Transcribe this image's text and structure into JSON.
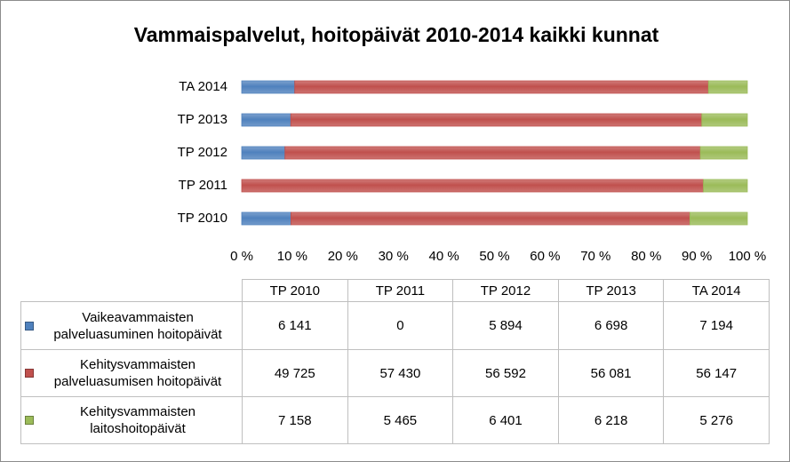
{
  "chart_data": {
    "type": "bar",
    "orientation": "horizontal",
    "stacking": "percent",
    "title": "Vammaispalvelut, hoitopäivät 2010-2014 kaikki kunnat",
    "categories": [
      "TP 2010",
      "TP 2011",
      "TP 2012",
      "TP 2013",
      "TA 2014"
    ],
    "series": [
      {
        "name": "Vaikeavammaisten palveluasuminen hoitopäivät",
        "color": "#4f81bd",
        "values": [
          6141,
          0,
          5894,
          6698,
          7194
        ],
        "value_labels": [
          "6 141",
          "0",
          "5 894",
          "6 698",
          "7 194"
        ]
      },
      {
        "name": "Kehitysvammaisten palveluasumisen hoitopäivät",
        "color": "#c0504d",
        "values": [
          49725,
          57430,
          56592,
          56081,
          56147
        ],
        "value_labels": [
          "49 725",
          "57 430",
          "56 592",
          "56 081",
          "56 147"
        ]
      },
      {
        "name": "Kehitysvammaisten laitoshoitopäivät",
        "color": "#9bbb59",
        "values": [
          7158,
          5465,
          6401,
          6218,
          5276
        ],
        "value_labels": [
          "7 158",
          "5 465",
          "6 401",
          "6 218",
          "5 276"
        ]
      }
    ],
    "xlim": [
      0,
      100
    ],
    "xticks": [
      {
        "value": 0,
        "label": "0 %"
      },
      {
        "value": 10,
        "label": "10 %"
      },
      {
        "value": 20,
        "label": "20 %"
      },
      {
        "value": 30,
        "label": "30 %"
      },
      {
        "value": 40,
        "label": "40 %"
      },
      {
        "value": 50,
        "label": "50 %"
      },
      {
        "value": 60,
        "label": "60 %"
      },
      {
        "value": 70,
        "label": "70 %"
      },
      {
        "value": 80,
        "label": "80 %"
      },
      {
        "value": 90,
        "label": "90 %"
      },
      {
        "value": 100,
        "label": "100 %"
      }
    ],
    "grid": false
  }
}
